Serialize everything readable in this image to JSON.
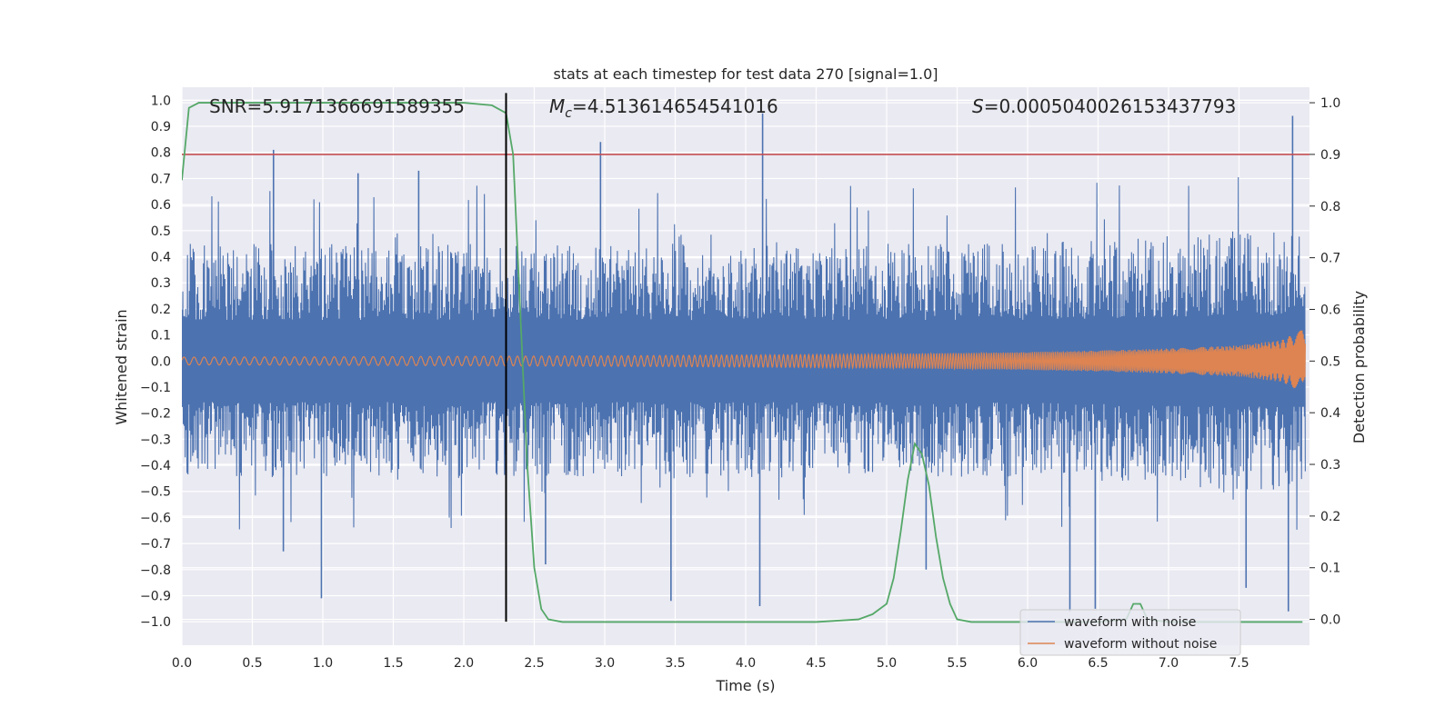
{
  "chart_data": {
    "type": "line",
    "title": "stats at each timestep for test data 270 [signal=1.0]",
    "xlabel": "Time (s)",
    "ylabel_left": "Whitened strain",
    "ylabel_right": "Detection probability",
    "xlim": [
      0.0,
      8.0
    ],
    "ylim_left": [
      -1.09,
      1.05
    ],
    "ylim_right": [
      -0.05,
      1.03
    ],
    "x_ticks": [
      "0.0",
      "0.5",
      "1.0",
      "1.5",
      "2.0",
      "2.5",
      "3.0",
      "3.5",
      "4.0",
      "4.5",
      "5.0",
      "5.5",
      "6.0",
      "6.5",
      "7.0",
      "7.5"
    ],
    "y_ticks_left": [
      "1.0",
      "0.9",
      "0.8",
      "0.7",
      "0.6",
      "0.5",
      "0.4",
      "0.3",
      "0.2",
      "0.1",
      "0.0",
      "−0.1",
      "−0.2",
      "−0.3",
      "−0.4",
      "−0.5",
      "−0.6",
      "−0.7",
      "−0.8",
      "−0.9",
      "−1.0"
    ],
    "y_ticks_right": [
      "1.0",
      "0.9",
      "0.8",
      "0.7",
      "0.6",
      "0.5",
      "0.4",
      "0.3",
      "0.2",
      "0.1",
      "0.0"
    ],
    "grid": true,
    "legend_position": "lower-right",
    "annotations": {
      "snr": "SNR=5.9171366691589355",
      "mc_symbol": "M",
      "mc_sub": "c",
      "mc_value": "=4.513614654541016",
      "s_symbol": "S",
      "s_value": "=0.0005040026153437793"
    },
    "series": [
      {
        "name": "waveform with noise",
        "axis": "left",
        "color": "#4c72b0",
        "envelope": {
          "x": [
            0.0,
            2.0,
            4.0,
            6.0,
            7.5,
            7.95
          ],
          "typical_min": [
            -0.45,
            -0.45,
            -0.45,
            -0.45,
            -0.5,
            -0.5
          ],
          "typical_max": [
            0.45,
            0.45,
            0.45,
            0.45,
            0.5,
            0.5
          ]
        },
        "peaks": [
          {
            "x": 0.65,
            "y": 0.81
          },
          {
            "x": 0.72,
            "y": -0.73
          },
          {
            "x": 0.99,
            "y": -0.91
          },
          {
            "x": 1.25,
            "y": 0.72
          },
          {
            "x": 1.68,
            "y": 0.73
          },
          {
            "x": 2.97,
            "y": 0.84
          },
          {
            "x": 3.47,
            "y": -0.92
          },
          {
            "x": 4.12,
            "y": 0.95
          },
          {
            "x": 4.1,
            "y": -0.94
          },
          {
            "x": 6.3,
            "y": -0.96
          },
          {
            "x": 6.48,
            "y": -0.95
          },
          {
            "x": 7.85,
            "y": -0.96
          },
          {
            "x": 7.88,
            "y": 0.94
          },
          {
            "x": 2.58,
            "y": -0.78
          },
          {
            "x": 5.28,
            "y": -0.8
          },
          {
            "x": 7.55,
            "y": -0.87
          }
        ]
      },
      {
        "name": "waveform without noise",
        "axis": "left",
        "color": "#dd8452",
        "amplitude": {
          "x": [
            0.0,
            1.0,
            2.0,
            3.0,
            4.0,
            5.0,
            6.0,
            6.5,
            7.0,
            7.5,
            7.8,
            7.95,
            8.0
          ],
          "y": [
            0.015,
            0.016,
            0.018,
            0.02,
            0.023,
            0.027,
            0.034,
            0.04,
            0.048,
            0.06,
            0.08,
            0.12,
            0.0
          ]
        }
      },
      {
        "name": "detection probability",
        "axis": "right",
        "color": "#55a868",
        "x": [
          0.0,
          0.05,
          0.12,
          0.3,
          0.6,
          1.0,
          1.5,
          2.0,
          2.2,
          2.3,
          2.35,
          2.4,
          2.45,
          2.5,
          2.55,
          2.6,
          2.7,
          3.0,
          4.0,
          4.5,
          4.8,
          4.9,
          5.0,
          5.05,
          5.1,
          5.15,
          5.2,
          5.25,
          5.3,
          5.35,
          5.4,
          5.45,
          5.5,
          5.6,
          6.0,
          6.5,
          6.7,
          6.75,
          6.8,
          6.85,
          7.0,
          7.5,
          7.95
        ],
        "y": [
          0.85,
          0.99,
          1.0,
          1.0,
          1.0,
          1.0,
          1.0,
          1.0,
          0.995,
          0.98,
          0.9,
          0.6,
          0.3,
          0.1,
          0.02,
          0.0,
          -0.005,
          -0.005,
          -0.005,
          -0.005,
          0.0,
          0.01,
          0.03,
          0.08,
          0.17,
          0.27,
          0.34,
          0.32,
          0.26,
          0.16,
          0.08,
          0.03,
          0.0,
          -0.005,
          -0.005,
          -0.005,
          0.0,
          0.03,
          0.03,
          0.0,
          -0.005,
          -0.005,
          -0.005
        ]
      }
    ],
    "hlines": [
      {
        "axis": "right",
        "y": 0.9,
        "color": "#c44e52"
      }
    ],
    "vlines": [
      {
        "x": 2.3,
        "y_from": -1.0,
        "y_to": 1.0,
        "axis": "left",
        "color": "#000000"
      }
    ]
  }
}
